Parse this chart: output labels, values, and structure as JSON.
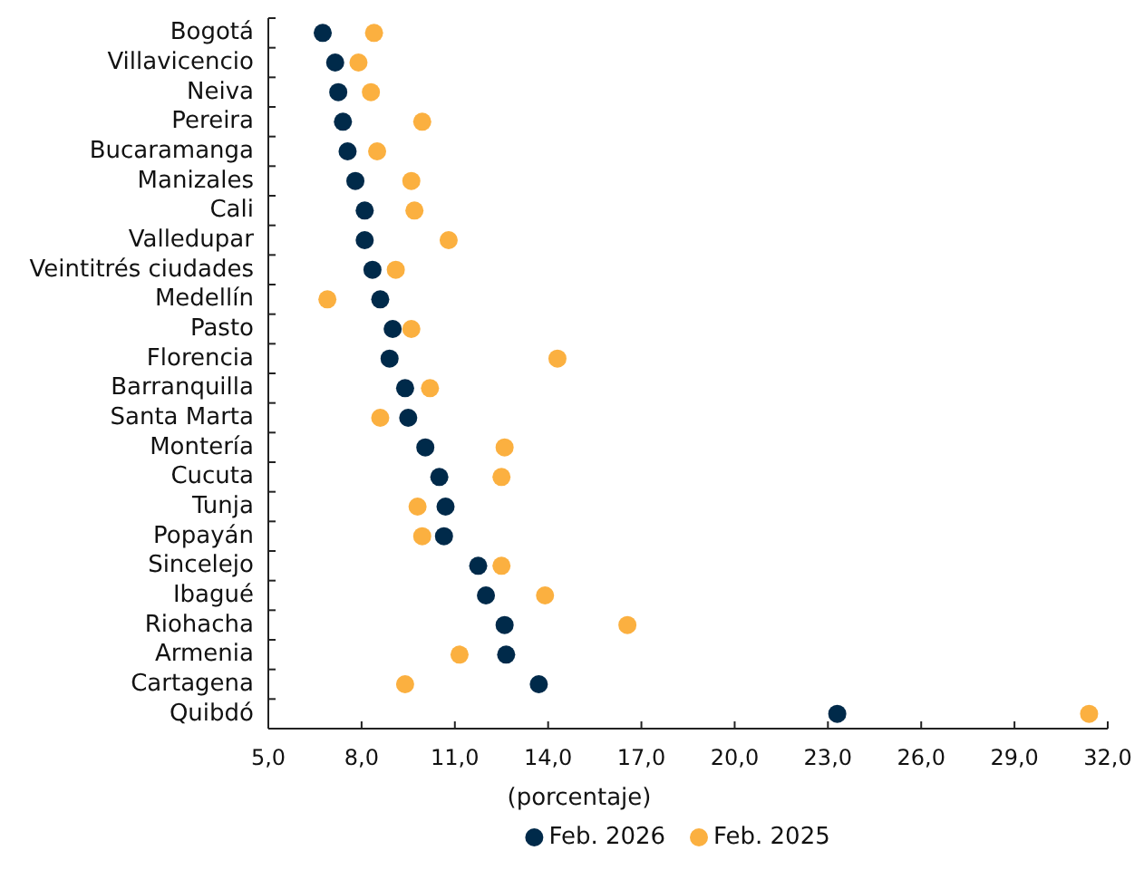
{
  "chart_data": {
    "type": "scatter",
    "orientation": "horizontal",
    "xlabel": "(porcentaje)",
    "categories": [
      "Bogotá",
      "Villavicencio",
      "Neiva",
      "Pereira",
      "Bucaramanga",
      "Manizales",
      "Cali",
      "Valledupar",
      "Veintitrés ciudades",
      "Medellín",
      "Pasto",
      "Florencia",
      "Barranquilla",
      "Santa Marta",
      "Montería",
      "Cucuta",
      "Tunja",
      "Popayán",
      "Sincelejo",
      "Ibagué",
      "Riohacha",
      "Armenia",
      "Cartagena",
      "Quibdó"
    ],
    "series": [
      {
        "name": "Feb. 2026",
        "color": "#002a4a",
        "values": [
          6.75,
          7.15,
          7.25,
          7.4,
          7.55,
          7.8,
          8.1,
          8.1,
          8.35,
          8.6,
          9.0,
          8.9,
          9.4,
          9.5,
          10.05,
          10.5,
          10.7,
          10.65,
          11.75,
          12.0,
          12.6,
          12.65,
          13.7,
          23.3
        ]
      },
      {
        "name": "Feb. 2025",
        "color": "#fbb040",
        "values": [
          8.4,
          7.9,
          8.3,
          9.95,
          8.5,
          9.6,
          9.7,
          10.8,
          9.1,
          6.9,
          9.6,
          14.3,
          10.2,
          8.6,
          12.6,
          12.5,
          9.8,
          9.95,
          12.5,
          13.9,
          16.55,
          11.15,
          9.4,
          31.4
        ]
      }
    ],
    "xlim": [
      5,
      32
    ],
    "xticks": [
      {
        "value": 5,
        "label": "5,0"
      },
      {
        "value": 8,
        "label": "8,0"
      },
      {
        "value": 11,
        "label": "11,0"
      },
      {
        "value": 14,
        "label": "14,0"
      },
      {
        "value": 17,
        "label": "17,0"
      },
      {
        "value": 20,
        "label": "20,0"
      },
      {
        "value": 23,
        "label": "23,0"
      },
      {
        "value": 26,
        "label": "26,0"
      },
      {
        "value": 29,
        "label": "29,0"
      },
      {
        "value": 32,
        "label": "32,0"
      }
    ],
    "marker": "circle",
    "legend": "bottom",
    "grid": false
  }
}
